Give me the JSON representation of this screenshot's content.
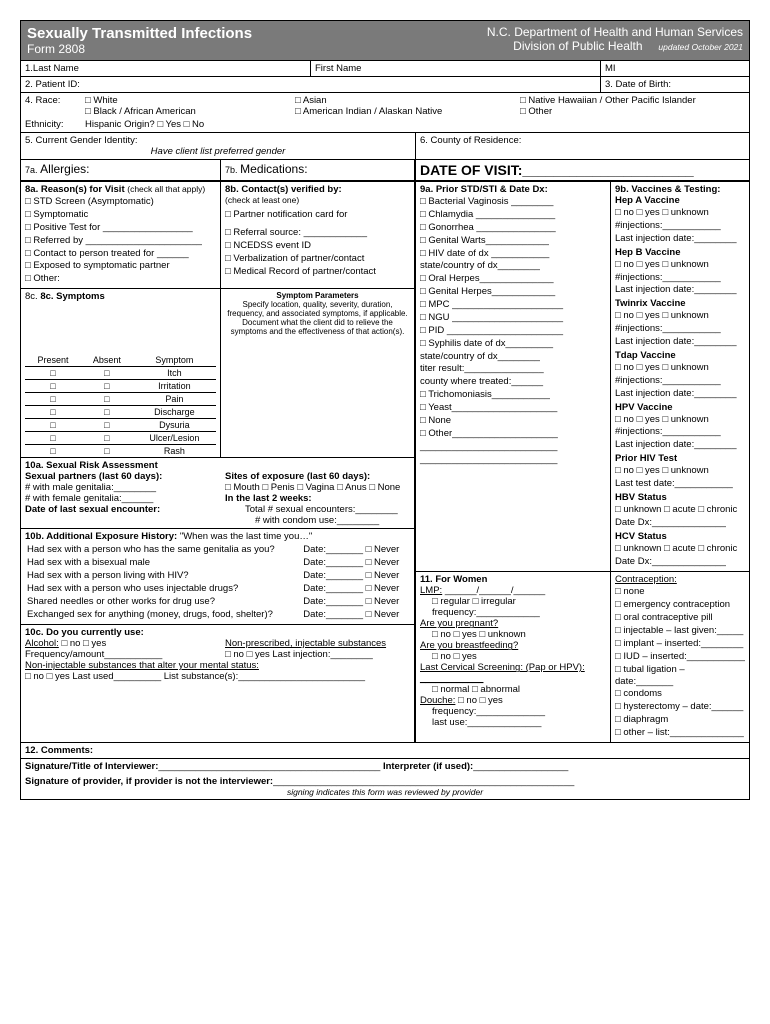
{
  "hdr": {
    "title": "Sexually Transmitted Infections",
    "form": "Form 2808",
    "dept": "N.C. Department of Health and Human Services",
    "div": "Division of Public Health",
    "updated": "updated October 2021"
  },
  "f1": {
    "last": "1.Last Name",
    "first": "First Name",
    "mi": "MI",
    "pid": "2. Patient ID:",
    "dob": "3. Date of Birth:",
    "race_label": "4. Race:",
    "white": "□ White",
    "asian": "□ Asian",
    "nhopi": "□ Native Hawaiian / Other Pacific Islander",
    "black": "□ Black / African American",
    "aian": "□ American Indian / Alaskan Native",
    "other": "□ Other",
    "ethnicity": "Ethnicity:",
    "hispanic": "Hispanic Origin? □ Yes □ No",
    "gender": "5. Current Gender Identity:",
    "gender_sub": "Have client list preferred gender",
    "county": "6. County of Residence:",
    "allergies": "7a. Allergies:",
    "meds": "7b. Medications:",
    "dov": "DATE OF VISIT:______________________"
  },
  "s8a": {
    "title": "8a. Reason(s) for Visit",
    "subtitle": "(check all that apply)",
    "i1": "□ STD Screen (Asymptomatic)",
    "i2": "□ Symptomatic",
    "i3": "□ Positive Test for _________________",
    "i4": "□ Referred by ______________________",
    "i5": "□ Contact to person treated for ______",
    "i6": "□ Exposed to symptomatic partner",
    "i7": "□ Other:"
  },
  "s8b": {
    "title": "8b. Contact(s) verified by:",
    "subtitle": "(check at least one)",
    "i1": "□ Partner notification card for",
    "i2": "□ Referral source: ____________",
    "i3": "□ NCEDSS event ID",
    "i4": "□ Verbalization of partner/contact",
    "i5": "□ Medical Record of partner/contact"
  },
  "s8c": {
    "title": "8c. Symptoms",
    "sp_title": "Symptom Parameters",
    "sp_text": "Specify location, quality, severity, duration, frequency, and associated symptoms, if applicable. Document what the client did to relieve the symptoms and the effectiveness of that action(s).",
    "h_present": "Present",
    "h_absent": "Absent",
    "h_symptom": "Symptom",
    "rows": [
      "Itch",
      "Irritation",
      "Pain",
      "Discharge",
      "Dysuria",
      "Ulcer/Lesion",
      "Rash"
    ]
  },
  "s9a": {
    "title": "9a. Prior STD/STI & Date Dx:",
    "items": [
      "□ Bacterial Vaginosis ________",
      "□ Chlamydia _______________",
      "□ Gonorrhea _______________",
      "□ Genital Warts____________",
      "□ HIV date of dx ___________",
      "   state/country of dx________",
      "□ Oral Herpes______________",
      "□ Genital Herpes____________",
      "□ MPC _____________________",
      "□ NGU _____________________",
      "□ PID ______________________",
      "□ Syphilis date of dx_________",
      "   state/country of dx________",
      "   titer result:_______________",
      "   county where treated:______",
      "□ Trichomoniasis___________",
      "□ Yeast____________________",
      "□ None",
      "□ Other____________________",
      "__________________________",
      "__________________________"
    ]
  },
  "s9b": {
    "title": "9b. Vaccines & Testing:",
    "vacs": [
      {
        "name": "Hep A Vaccine",
        "lines": [
          "□ no □ yes □ unknown",
          "#injections:___________",
          "Last injection date:________"
        ]
      },
      {
        "name": "Hep B Vaccine",
        "lines": [
          "□ no □ yes □ unknown",
          "#injections:___________",
          "Last injection date:________"
        ]
      },
      {
        "name": "Twinrix Vaccine",
        "lines": [
          "□ no □ yes □ unknown",
          "#injections:___________",
          "Last injection date:________"
        ]
      },
      {
        "name": "Tdap Vaccine",
        "lines": [
          "□ no □ yes □ unknown",
          "#injections:___________",
          "Last injection date:________"
        ]
      },
      {
        "name": "HPV Vaccine",
        "lines": [
          "□ no □ yes □ unknown",
          "#injections:___________",
          "Last injection date:________"
        ]
      },
      {
        "name": "Prior HIV Test",
        "lines": [
          "□ no □ yes □ unknown",
          "Last test date:___________"
        ]
      },
      {
        "name": "HBV Status",
        "lines": [
          "□ unknown □ acute □ chronic",
          "Date Dx:______________"
        ]
      },
      {
        "name": "HCV Status",
        "lines": [
          "□ unknown □ acute □ chronic",
          "Date Dx:______________"
        ]
      }
    ]
  },
  "s10a": {
    "title": "10a. Sexual Risk Assessment",
    "partners": "Sexual partners (last 60 days):",
    "sites": "Sites of exposure (last 60 days):",
    "male": "# with male genitalia:________",
    "site_opts": "□ Mouth  □ Penis  □ Vagina  □ Anus  □ None",
    "female": "# with female genitalia:______",
    "last2": "In the last 2 weeks:",
    "date_last": "Date of last sexual encounter:",
    "total": "Total # sexual encounters:________",
    "condom": "# with condom use:________"
  },
  "s10b": {
    "title": "10b. Additional Exposure History:",
    "quote": "\"When was the last time you…\"",
    "qs": [
      "Had sex with a person who has the same genitalia as you?",
      "Had sex with a bisexual male",
      "Had sex with a person living with HIV?",
      "Had sex with a person who uses injectable drugs?",
      "Shared needles or other works for drug use?",
      "Exchanged sex for anything (money, drugs, food, shelter)?"
    ],
    "date": "Date:_______",
    "never": "□ Never"
  },
  "s10c": {
    "title": "10c. Do you currently use:",
    "alc": "Alcohol:",
    "ny": "□ no  □ yes",
    "nonpresc": "Non-prescribed, injectable substances",
    "freq": "Frequency/amount___________",
    "lastinj": "□ no  □ yes  Last injection:________",
    "noninj": "Non-injectable substances that alter your mental status:",
    "noninj2": "□ no □ yes  Last used_________ List substance(s):________________________"
  },
  "s11": {
    "title": "11. For Women",
    "lmp": "LMP:",
    "lmp_blanks": "______/______/______",
    "reg": "□ regular   □ irregular",
    "freq": "frequency:____________",
    "preg": "Are you pregnant?",
    "ny_unk": "□ no  □ yes  □ unknown",
    "bf": "Are you breastfeeding?",
    "ny": "□ no  □ yes",
    "lcs": "Last Cervical Screening: (Pap or HPV): ____________",
    "norm": "□ normal   □ abnormal",
    "douche": "Douche:",
    "dfreq": "frequency:_____________",
    "dlast": "last use:______________",
    "contra_title": "Contraception:",
    "contra": [
      "□ none",
      "□ emergency contraception",
      "□ oral contraceptive pill",
      "□ injectable – last given:_____",
      "□ implant – inserted:________",
      "□ IUD – inserted:___________",
      "□ tubal ligation – date:_______",
      "□ condoms",
      "□ hysterectomy – date:______",
      "□ diaphragm",
      "□ other – list:______________"
    ]
  },
  "bottom": {
    "comments": "12. Comments:",
    "sig1_label": "Signature/Title of Interviewer:",
    "sig1_blank": "__________________________________________",
    "interp_label": "Interpreter (if used):",
    "interp_blank": "__________________",
    "sig2_label": "Signature of provider, if provider is not the interviewer:",
    "sig2_blank": "_________________________________________________________",
    "note": "signing indicates this form was reviewed by provider"
  }
}
